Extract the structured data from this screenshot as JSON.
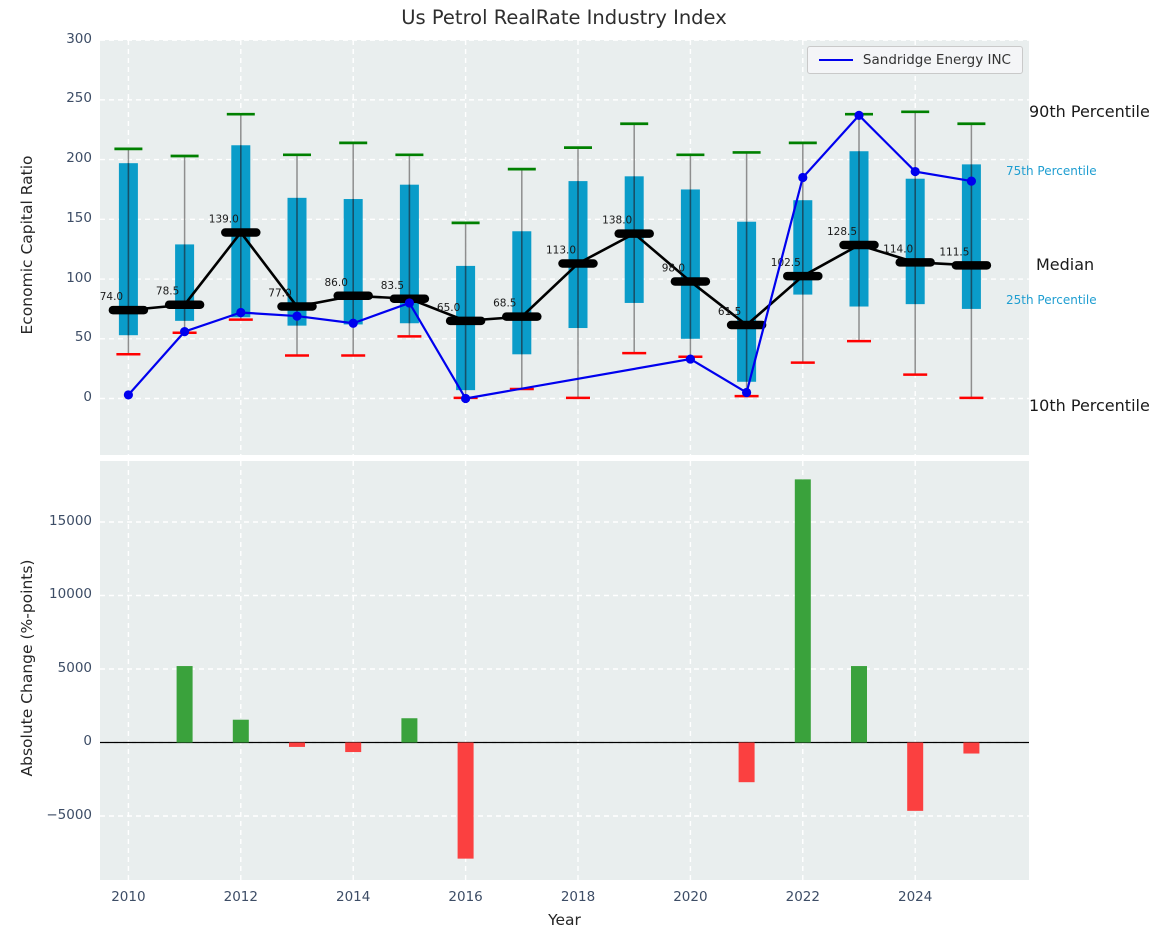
{
  "figure": {
    "title": "Us Petrol RealRate Industry Index",
    "xlabel": "Year"
  },
  "colors": {
    "figure_bg": "#ffffff",
    "plot_bg": "#e9eeee",
    "grid": "#ffffff",
    "box_fill": "#0a9cc9",
    "box_inner_line": "#175068",
    "whisker": "#8e8e8e",
    "cap_high": "#008000",
    "cap_low": "#ff0000",
    "median": "#000000",
    "company_line": "#0000ee",
    "bar_positive": "#3aa23c",
    "bar_negative": "#fb4040",
    "tick_label": "#3d4d66",
    "annotation_black": "#1a1a1a",
    "annotation_cyan": "#1f9ed1"
  },
  "chart_data": [
    {
      "type": "box-whisker-line",
      "title": "Us Petrol RealRate Industry Index",
      "ylabel": "Economic Capital Ratio",
      "ylim": [
        -47,
        300
      ],
      "grid": true,
      "yticks": [
        {
          "label": "0",
          "v": 0
        },
        {
          "label": "50",
          "v": 50
        },
        {
          "label": "100",
          "v": 100
        },
        {
          "label": "150",
          "v": 150
        },
        {
          "label": "200",
          "v": 200
        },
        {
          "label": "250",
          "v": 250
        },
        {
          "label": "300",
          "v": 300
        }
      ],
      "years": [
        2010,
        2011,
        2012,
        2013,
        2014,
        2015,
        2016,
        2017,
        2018,
        2019,
        2020,
        2021,
        2022,
        2023,
        2024,
        2025
      ],
      "series": [
        {
          "name": "90th Percentile",
          "values": [
            209,
            203,
            238,
            204,
            214,
            204,
            147,
            192,
            210,
            230,
            204,
            206,
            214,
            238,
            240,
            230
          ]
        },
        {
          "name": "75th Percentile",
          "values": [
            197,
            129,
            212,
            168,
            167,
            179,
            111,
            140,
            182,
            186,
            175,
            148,
            166,
            207,
            184,
            196
          ]
        },
        {
          "name": "Median",
          "values": [
            74.0,
            78.5,
            139.0,
            77.0,
            86.0,
            83.5,
            65.0,
            68.5,
            113.0,
            138.0,
            98.0,
            61.5,
            102.5,
            128.5,
            114.0,
            111.5
          ]
        },
        {
          "name": "25th Percentile",
          "values": [
            53,
            65,
            68,
            61,
            62,
            63,
            7,
            37,
            59,
            80,
            50,
            14,
            87,
            77,
            79,
            75
          ]
        },
        {
          "name": "10th Percentile",
          "values": [
            37,
            55,
            66,
            36,
            36,
            52,
            0.5,
            8,
            0.5,
            38,
            35,
            2,
            30,
            48,
            20,
            0.5
          ]
        }
      ],
      "median_labels": [
        "74.0",
        "78.5",
        "139.0",
        "77.0",
        "86.0",
        "83.5",
        "65.0",
        "68.5",
        "113.0",
        "138.0",
        "98.0",
        "61.5",
        "102.5",
        "128.5",
        "114.0",
        "111.5"
      ],
      "company_line": {
        "name": "Sandridge Energy INC",
        "x": [
          2010,
          2011,
          2012,
          2013,
          2014,
          2015,
          2016,
          2020,
          2021,
          2022,
          2023,
          2024,
          2025
        ],
        "y": [
          3,
          56,
          72,
          69,
          63,
          80,
          0,
          33,
          5,
          185,
          237,
          190,
          182
        ]
      },
      "legend": {
        "label": "Sandridge Energy INC",
        "position": "upper right"
      },
      "right_annotations": [
        {
          "text": "90th Percentile",
          "v": 240,
          "style": "black",
          "size": 16,
          "dx": -51
        },
        {
          "text": "75th Percentile",
          "v": 190,
          "style": "cyan",
          "size": 12,
          "dx": -74
        },
        {
          "text": "Median",
          "v": 111.5,
          "style": "black",
          "size": 16,
          "dx": -44
        },
        {
          "text": "25th Percentile",
          "v": 82,
          "style": "cyan",
          "size": 12,
          "dx": -74
        },
        {
          "text": "10th Percentile",
          "v": -6,
          "style": "black",
          "size": 16,
          "dx": -51
        }
      ]
    },
    {
      "type": "bar",
      "ylabel": "Absolute Change (%-points)",
      "xlabel": "Year",
      "ylim": [
        -9350,
        19150
      ],
      "grid": true,
      "yticks": [
        {
          "label": "−5000",
          "v": -5000
        },
        {
          "label": "0",
          "v": 0
        },
        {
          "label": "5000",
          "v": 5000
        },
        {
          "label": "10000",
          "v": 10000
        },
        {
          "label": "15000",
          "v": 15000
        }
      ],
      "xticks": [
        2010,
        2012,
        2014,
        2016,
        2018,
        2020,
        2022,
        2024
      ],
      "categories": [
        2010,
        2011,
        2012,
        2013,
        2014,
        2015,
        2016,
        2017,
        2018,
        2019,
        2020,
        2021,
        2022,
        2023,
        2024,
        2025
      ],
      "values": [
        null,
        5200,
        1550,
        -300,
        -650,
        1650,
        -7900,
        null,
        null,
        null,
        null,
        -2700,
        17900,
        5200,
        -4650,
        -750
      ]
    }
  ]
}
